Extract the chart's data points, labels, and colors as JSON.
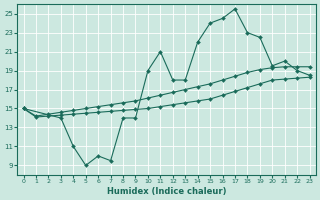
{
  "xlabel": "Humidex (Indice chaleur)",
  "background_color": "#cce8e0",
  "grid_color": "#ffffff",
  "line_color": "#1a6b5a",
  "xlim": [
    -0.5,
    23.5
  ],
  "ylim": [
    8,
    26
  ],
  "xticks": [
    0,
    1,
    2,
    3,
    4,
    5,
    6,
    7,
    8,
    9,
    10,
    11,
    12,
    13,
    14,
    15,
    16,
    17,
    18,
    19,
    20,
    21,
    22,
    23
  ],
  "yticks": [
    9,
    11,
    13,
    15,
    17,
    19,
    21,
    23,
    25
  ],
  "line1_x": [
    0,
    1,
    2,
    3,
    4,
    5,
    6,
    7,
    8,
    9,
    10,
    11,
    12,
    13,
    14,
    15,
    16,
    17,
    18,
    19,
    20,
    21,
    22,
    23
  ],
  "line1_y": [
    15,
    14.1,
    14.2,
    14.3,
    14.4,
    14.5,
    14.6,
    14.7,
    14.8,
    14.9,
    15.0,
    15.2,
    15.4,
    15.6,
    15.8,
    16.0,
    16.4,
    16.8,
    17.2,
    17.6,
    18.0,
    18.1,
    18.2,
    18.3
  ],
  "line2_x": [
    0,
    1,
    2,
    3,
    4,
    5,
    6,
    7,
    8,
    9,
    10,
    11,
    12,
    13,
    14,
    15,
    16,
    17,
    18,
    19,
    20,
    21,
    22,
    23
  ],
  "line2_y": [
    15,
    14.2,
    14.4,
    14.6,
    14.8,
    15.0,
    15.2,
    15.4,
    15.6,
    15.8,
    16.1,
    16.4,
    16.7,
    17.0,
    17.3,
    17.6,
    18.0,
    18.4,
    18.8,
    19.1,
    19.3,
    19.4,
    19.4,
    19.4
  ],
  "line3_x": [
    0,
    3,
    4,
    5,
    6,
    7,
    8,
    9,
    10,
    11,
    12,
    13,
    14,
    15,
    16,
    17,
    18,
    19,
    20,
    21,
    22,
    23
  ],
  "line3_y": [
    15,
    14,
    11,
    9,
    10,
    9.5,
    14,
    14,
    19,
    21,
    18,
    18,
    22,
    24,
    24.5,
    25.5,
    23,
    22.5,
    19.5,
    20,
    19,
    18.5
  ]
}
